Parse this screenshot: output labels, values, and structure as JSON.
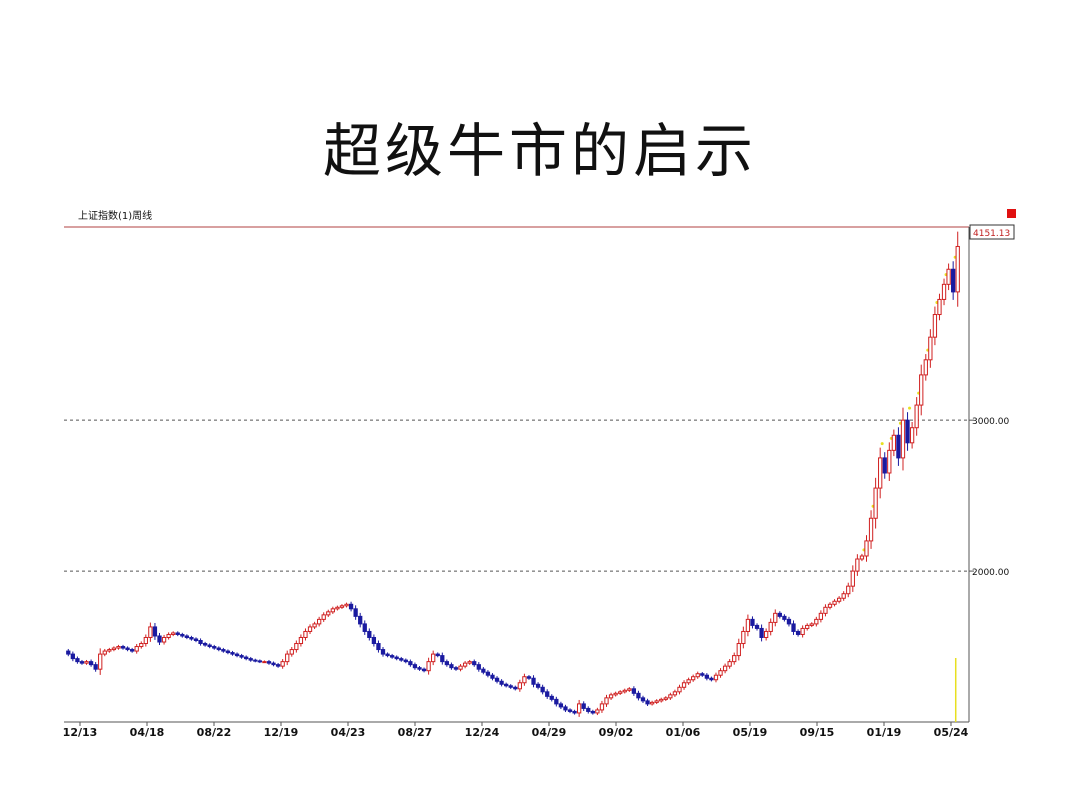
{
  "slide": {
    "title": "超级牛市的启示"
  },
  "chart_data": {
    "type": "candlestick",
    "title": "上证指数(1)周线",
    "x_tick_labels": [
      "12/13",
      "04/18",
      "08/22",
      "12/19",
      "04/23",
      "08/27",
      "12/24",
      "04/29",
      "09/02",
      "01/06",
      "05/19",
      "09/15",
      "01/19",
      "05/24"
    ],
    "y_tick_labels": [
      "3000.00",
      "2000.00"
    ],
    "y_ticks": [
      3000,
      2000
    ],
    "ylim": [
      1000,
      4280
    ],
    "last_value_label": "4151.13",
    "grid": "dashed horizontal at y ticks",
    "colors": {
      "up": "#d02020",
      "down": "#1a1aa0",
      "axis": "#b04040",
      "grid": "#555555",
      "marker": "#e8e020"
    },
    "series": [
      {
        "name": "上证指数",
        "close": [
          1450,
          1420,
          1400,
          1390,
          1400,
          1380,
          1350,
          1450,
          1470,
          1480,
          1490,
          1500,
          1490,
          1480,
          1470,
          1500,
          1520,
          1560,
          1630,
          1570,
          1530,
          1560,
          1580,
          1590,
          1580,
          1570,
          1560,
          1550,
          1540,
          1520,
          1510,
          1500,
          1490,
          1480,
          1470,
          1460,
          1450,
          1440,
          1430,
          1420,
          1410,
          1405,
          1400,
          1400,
          1390,
          1380,
          1370,
          1400,
          1450,
          1480,
          1520,
          1560,
          1600,
          1630,
          1650,
          1680,
          1710,
          1730,
          1750,
          1760,
          1770,
          1780,
          1750,
          1700,
          1650,
          1600,
          1560,
          1520,
          1480,
          1450,
          1440,
          1430,
          1420,
          1410,
          1400,
          1380,
          1360,
          1350,
          1340,
          1400,
          1450,
          1440,
          1400,
          1380,
          1360,
          1350,
          1370,
          1390,
          1400,
          1380,
          1350,
          1330,
          1310,
          1290,
          1270,
          1250,
          1240,
          1230,
          1220,
          1260,
          1300,
          1290,
          1250,
          1230,
          1200,
          1170,
          1150,
          1120,
          1100,
          1080,
          1070,
          1060,
          1120,
          1090,
          1070,
          1060,
          1080,
          1120,
          1160,
          1180,
          1190,
          1200,
          1210,
          1220,
          1190,
          1160,
          1140,
          1120,
          1130,
          1140,
          1150,
          1160,
          1180,
          1200,
          1230,
          1260,
          1280,
          1300,
          1320,
          1310,
          1290,
          1280,
          1310,
          1340,
          1370,
          1400,
          1440,
          1520,
          1600,
          1680,
          1640,
          1620,
          1560,
          1600,
          1660,
          1720,
          1700,
          1680,
          1650,
          1600,
          1580,
          1620,
          1640,
          1650,
          1680,
          1720,
          1760,
          1780,
          1800,
          1820,
          1850,
          1900,
          2000,
          2080,
          2100,
          2200,
          2350,
          2550,
          2750,
          2650,
          2800,
          2900,
          2750,
          3000,
          2850,
          2950,
          3100,
          3300,
          3400,
          3550,
          3700,
          3800,
          3900,
          4000,
          3850,
          4151
        ]
      }
    ]
  }
}
